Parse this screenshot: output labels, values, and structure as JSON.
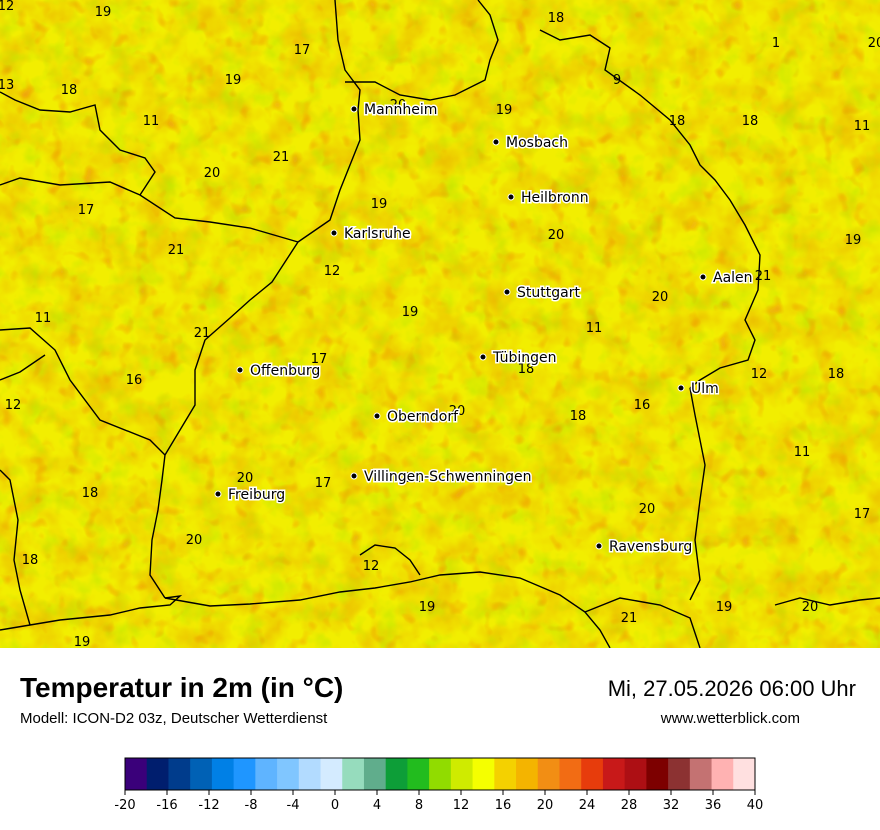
{
  "map": {
    "cities": [
      {
        "name": "Mannheim"
      },
      {
        "name": "Mosbach"
      },
      {
        "name": "Heilbronn"
      },
      {
        "name": "Karlsruhe"
      },
      {
        "name": "Aalen"
      },
      {
        "name": "Stuttgart"
      },
      {
        "name": "Tübingen"
      },
      {
        "name": "Offenburg"
      },
      {
        "name": "Ulm"
      },
      {
        "name": "Oberndorf"
      },
      {
        "name": "Villingen-Schwenningen"
      },
      {
        "name": "Freiburg"
      },
      {
        "name": "Ravensburg"
      }
    ],
    "temperature_labels": [
      "12",
      "19",
      "18",
      "17",
      "1",
      "20",
      "13",
      "18",
      "19",
      "20",
      "19",
      "9",
      "11",
      "18",
      "18",
      "11",
      "21",
      "20",
      "17",
      "19",
      "21",
      "20",
      "19",
      "21",
      "12",
      "20",
      "11",
      "19",
      "11",
      "21",
      "17",
      "18",
      "12",
      "18",
      "12",
      "16",
      "20",
      "18",
      "16",
      "20",
      "21",
      "11",
      "18",
      "17",
      "20",
      "17",
      "20",
      "18",
      "12",
      "19",
      "19",
      "20",
      "21",
      "19"
    ]
  },
  "footer": {
    "title": "Temperatur in 2m (in °C)",
    "model": "Modell: ICON-D2 03z, Deutscher Wetterdienst",
    "datetime": "Mi, 27.05.2026 06:00 Uhr",
    "website": "www.wetterblick.com"
  },
  "legend": {
    "colors": [
      "#3a007a",
      "#001e6e",
      "#003c8c",
      "#0061b5",
      "#0080e6",
      "#1f96ff",
      "#5fb4ff",
      "#80c6ff",
      "#b2dbff",
      "#d4ebff",
      "#96dcbd",
      "#60ad8c",
      "#0d9e38",
      "#22bc1e",
      "#91dc00",
      "#cfeb00",
      "#f5ff00",
      "#f4d100",
      "#f4b400",
      "#f28e14",
      "#f26c14",
      "#e73c0c",
      "#c81919",
      "#ad0f14",
      "#7d0000",
      "#8c3232",
      "#c47272",
      "#ffb2b2",
      "#ffe0e0"
    ],
    "ticks": [
      "-20",
      "-16",
      "-12",
      "-8",
      "-4",
      "0",
      "4",
      "8",
      "12",
      "16",
      "20",
      "24",
      "28",
      "32",
      "36",
      "40"
    ]
  }
}
